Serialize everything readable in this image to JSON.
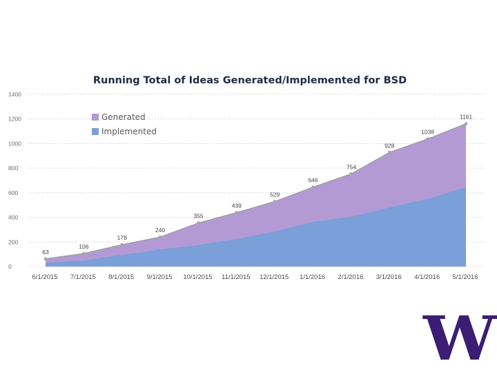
{
  "chart_data": {
    "type": "area",
    "title": "Running Total of Ideas Generated/Implemented for BSD",
    "xlabel": "",
    "ylabel": "",
    "ylim": [
      0,
      1400
    ],
    "yticks": [
      0,
      200,
      400,
      600,
      800,
      1000,
      1200,
      1400
    ],
    "categories": [
      "6/1/2015",
      "7/1/2015",
      "8/1/2015",
      "9/1/2015",
      "10/1/2015",
      "11/1/2015",
      "12/1/2015",
      "1/1/2016",
      "2/1/2016",
      "3/1/2016",
      "4/1/2016",
      "5/1/2016"
    ],
    "series": [
      {
        "name": "Generated",
        "color": "#b39ad4",
        "values": [
          63,
          106,
          178,
          240,
          355,
          439,
          529,
          646,
          754,
          928,
          1038,
          1161
        ],
        "labels": [
          "63",
          "106",
          "178",
          "240",
          "355",
          "439",
          "529",
          "646",
          "754",
          "928",
          "1038",
          "1161"
        ]
      },
      {
        "name": "Implemented",
        "color": "#7b9fd8",
        "values": [
          30,
          50,
          95,
          140,
          175,
          225,
          285,
          365,
          405,
          480,
          550,
          645
        ]
      }
    ],
    "legend_position": "top-left",
    "grid": true,
    "point_color": "#a6a6a6"
  },
  "logo": {
    "text": "W",
    "color": "#3b1e73",
    "name": "University of Washington W logo"
  }
}
